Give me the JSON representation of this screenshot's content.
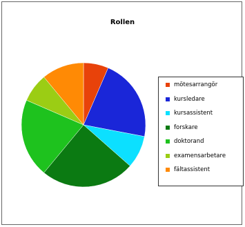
{
  "chart_data": {
    "type": "pie",
    "title": "Rollen",
    "slices": [
      {
        "label": "mötesarrangör",
        "value": 6.5,
        "color": "#e8420a"
      },
      {
        "label": "kursledare",
        "value": 21.5,
        "color": "#1a26d8"
      },
      {
        "label": "kursassistent",
        "value": 8.5,
        "color": "#0ce0ff"
      },
      {
        "label": "forskare",
        "value": 24.5,
        "color": "#0b7a12"
      },
      {
        "label": "doktorand",
        "value": 20.5,
        "color": "#1ec21e"
      },
      {
        "label": "examensarbetare",
        "value": 7.5,
        "color": "#9bcd14"
      },
      {
        "label": "fältassistent",
        "value": 11.0,
        "color": "#ff8a05"
      }
    ],
    "legend_position": "right",
    "start_angle": "top",
    "direction": "clockwise"
  }
}
